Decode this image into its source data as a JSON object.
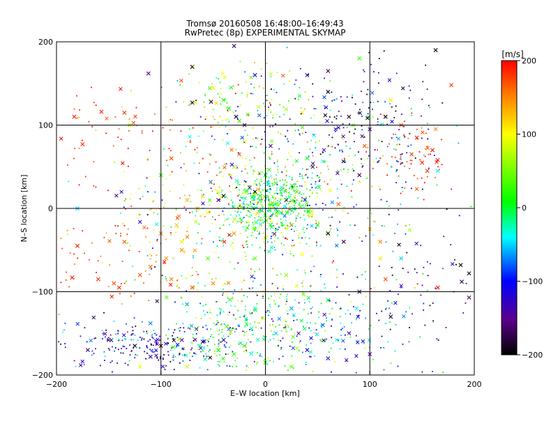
{
  "chart_data": {
    "type": "scatter",
    "title": "Tromsø 20160508 16:48:00–16:49:43",
    "subtitle": "RwPretec (8p) EXPERIMENTAL SKYMAP",
    "xlabel": "E–W location [km]",
    "ylabel": "N–S location [km]",
    "xlim": [
      -200,
      200
    ],
    "ylim": [
      -200,
      200
    ],
    "xticks": [
      "−200",
      "−100",
      "0",
      "100",
      "200"
    ],
    "yticks": [
      "−200",
      "−100",
      "0",
      "100",
      "200"
    ],
    "xtick_values": [
      -200,
      -100,
      0,
      100,
      200
    ],
    "ytick_values": [
      -200,
      -100,
      0,
      100,
      200
    ],
    "grid": true,
    "colorbar": {
      "label": "[m/s]",
      "range": [
        -200,
        200
      ],
      "ticks": [
        "200",
        "100",
        "0",
        "−100",
        "−200"
      ],
      "tick_values": [
        200,
        100,
        0,
        -100,
        -200
      ],
      "colors": [
        "#000000",
        "#5a008c",
        "#0000ff",
        "#00ffff",
        "#00ff00",
        "#ffff00",
        "#ff8000",
        "#ff0000"
      ]
    },
    "marker_types": [
      "x",
      "dot"
    ],
    "points": [
      [
        -157,
        116,
        190,
        "x"
      ],
      [
        -183,
        110,
        190,
        "x"
      ],
      [
        -135,
        115,
        180,
        "x"
      ],
      [
        -175,
        77,
        185,
        "x"
      ],
      [
        -180,
        -45,
        190,
        "x"
      ],
      [
        -185,
        -83,
        195,
        "x"
      ],
      [
        -160,
        -85,
        180,
        "x"
      ],
      [
        -145,
        -90,
        170,
        "x"
      ],
      [
        -140,
        -95,
        185,
        "x"
      ],
      [
        -120,
        -80,
        170,
        "x"
      ],
      [
        -110,
        -70,
        160,
        "x"
      ],
      [
        -95,
        -60,
        140,
        "x"
      ],
      [
        -80,
        -50,
        150,
        "x"
      ],
      [
        -135,
        -40,
        160,
        "x"
      ],
      [
        -100,
        -30,
        150,
        "x"
      ],
      [
        -75,
        10,
        130,
        "x"
      ],
      [
        -60,
        15,
        120,
        "x"
      ],
      [
        -45,
        20,
        100,
        "x"
      ],
      [
        -85,
        -20,
        120,
        "x"
      ],
      [
        -50,
        -90,
        150,
        "x"
      ],
      [
        -70,
        -95,
        170,
        "x"
      ],
      [
        -90,
        -85,
        150,
        "x"
      ],
      [
        145,
        85,
        185,
        "x"
      ],
      [
        160,
        70,
        190,
        "x"
      ],
      [
        150,
        55,
        185,
        "x"
      ],
      [
        165,
        58,
        190,
        "x"
      ],
      [
        155,
        45,
        180,
        "x"
      ],
      [
        140,
        65,
        175,
        "x"
      ],
      [
        130,
        100,
        175,
        "x"
      ],
      [
        110,
        -40,
        150,
        "x"
      ],
      [
        100,
        -25,
        130,
        "x"
      ],
      [
        165,
        -95,
        195,
        "x"
      ],
      [
        178,
        148,
        180,
        "x"
      ],
      [
        -112,
        162,
        -170,
        "x"
      ],
      [
        -70,
        127,
        -200,
        "x"
      ],
      [
        -52,
        128,
        -190,
        "x"
      ],
      [
        -70,
        170,
        -200,
        "x"
      ],
      [
        -30,
        195,
        -180,
        "x"
      ],
      [
        60,
        165,
        -180,
        "x"
      ],
      [
        80,
        110,
        -190,
        "x"
      ],
      [
        100,
        95,
        -170,
        "x"
      ],
      [
        115,
        110,
        -200,
        "x"
      ],
      [
        90,
        40,
        -180,
        "x"
      ],
      [
        -10,
        20,
        -200,
        "x"
      ],
      [
        -15,
        25,
        -180,
        "x"
      ],
      [
        20,
        10,
        -190,
        "x"
      ],
      [
        60,
        -30,
        -200,
        "x"
      ],
      [
        75,
        -40,
        -180,
        "x"
      ],
      [
        -45,
        10,
        -170,
        "x"
      ],
      [
        -40,
        15,
        -200,
        "x"
      ],
      [
        -20,
        100,
        -180,
        "x"
      ],
      [
        -28,
        110,
        -190,
        "x"
      ],
      [
        5,
        75,
        -170,
        "x"
      ],
      [
        -150,
        -158,
        -170,
        "x"
      ],
      [
        -125,
        -165,
        -200,
        "x"
      ],
      [
        -100,
        -165,
        -190,
        "x"
      ],
      [
        -80,
        -158,
        -170,
        "x"
      ],
      [
        -60,
        -160,
        -180,
        "x"
      ],
      [
        -40,
        -158,
        -130,
        "x"
      ],
      [
        -170,
        -170,
        -180,
        "x"
      ],
      [
        -110,
        -178,
        -150,
        "x"
      ],
      [
        40,
        -170,
        -140,
        "x"
      ],
      [
        60,
        -180,
        -150,
        "x"
      ],
      [
        80,
        -150,
        -120,
        "x"
      ],
      [
        100,
        -175,
        -160,
        "x"
      ],
      [
        187,
        -68,
        -200,
        "x"
      ],
      [
        195,
        -78,
        -190,
        "x"
      ],
      [
        188,
        -88,
        -185,
        "x"
      ],
      [
        195,
        -107,
        -180,
        "x"
      ],
      [
        163,
        190,
        -200,
        "x"
      ],
      [
        -10,
        160,
        -120,
        "x"
      ],
      [
        40,
        160,
        -150,
        "x"
      ],
      [
        90,
        -100,
        -190,
        "x"
      ],
      [
        120,
        -130,
        -190,
        "x"
      ],
      [
        -35,
        -145,
        -60,
        "x"
      ],
      [
        -75,
        -115,
        -60,
        "x"
      ],
      [
        -110,
        -138,
        -70,
        "x"
      ],
      [
        10,
        -150,
        -50,
        "x"
      ],
      [
        25,
        -120,
        -60,
        "x"
      ],
      [
        55,
        -140,
        -80,
        "x"
      ],
      [
        -10,
        -120,
        -40,
        "x"
      ],
      [
        -180,
        0,
        -50,
        "x"
      ],
      [
        165,
        45,
        -40,
        "x"
      ],
      [
        130,
        -60,
        -50,
        "x"
      ],
      [
        -35,
        120,
        10,
        "x"
      ],
      [
        -40,
        130,
        20,
        "x"
      ],
      [
        -25,
        105,
        30,
        "x"
      ],
      [
        0,
        40,
        0,
        "x"
      ],
      [
        10,
        30,
        10,
        "x"
      ],
      [
        -5,
        15,
        20,
        "x"
      ],
      [
        15,
        -5,
        -10,
        "x"
      ],
      [
        30,
        20,
        30,
        "x"
      ],
      [
        50,
        -20,
        15,
        "x"
      ],
      [
        40,
        60,
        5,
        "x"
      ],
      [
        -30,
        -175,
        30,
        "x"
      ],
      [
        -20,
        -165,
        20,
        "x"
      ],
      [
        -45,
        -170,
        10,
        "x"
      ],
      [
        0,
        -185,
        15,
        "x"
      ],
      [
        25,
        -190,
        40,
        "x"
      ],
      [
        60,
        -110,
        10,
        "x"
      ],
      [
        -100,
        40,
        20,
        "x"
      ],
      [
        90,
        180,
        30,
        "x"
      ],
      [
        -10,
        -60,
        50,
        "x"
      ],
      [
        -55,
        -60,
        40,
        "x"
      ],
      [
        20,
        -80,
        60,
        "x"
      ],
      [
        -75,
        -190,
        80,
        "x"
      ],
      [
        -120,
        -190,
        90,
        "x"
      ],
      [
        -130,
        100,
        70,
        "x"
      ],
      [
        -30,
        50,
        80,
        "x"
      ],
      [
        0,
        -35,
        80,
        "x"
      ],
      [
        35,
        -55,
        100,
        "x"
      ],
      [
        -20,
        80,
        100,
        "x"
      ],
      [
        120,
        130,
        110,
        "x"
      ],
      [
        -80,
        -40,
        110,
        "x"
      ],
      [
        -55,
        -5,
        105,
        "x"
      ],
      [
        35,
        115,
        105,
        "x"
      ],
      [
        -50,
        145,
        110,
        "x"
      ],
      [
        110,
        -60,
        110,
        "x"
      ],
      [
        -65,
        0,
        130,
        "x"
      ],
      [
        -30,
        -30,
        140,
        "x"
      ],
      [
        25,
        -20,
        150,
        "x"
      ],
      [
        70,
        5,
        160,
        "x"
      ],
      [
        -25,
        65,
        160,
        "x"
      ],
      [
        -90,
        60,
        170,
        "x"
      ],
      [
        95,
        75,
        170,
        "x"
      ],
      [
        115,
        -85,
        170,
        "x"
      ],
      [
        60,
        140,
        -220,
        "x"
      ]
    ]
  }
}
